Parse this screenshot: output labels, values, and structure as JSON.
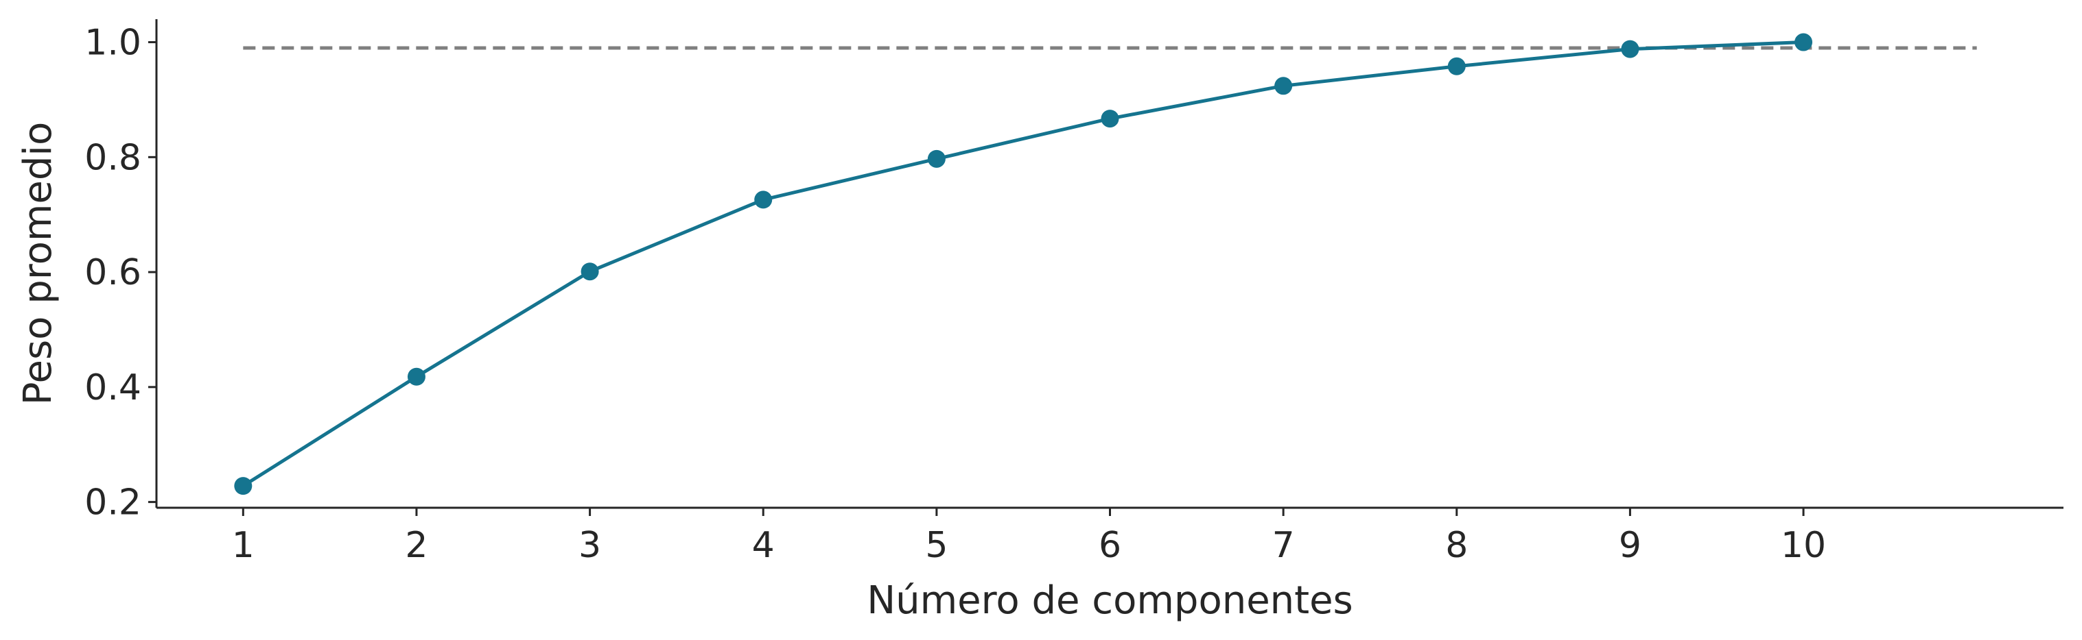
{
  "chart_data": {
    "type": "line",
    "title": "",
    "xlabel": "Número de componentes",
    "ylabel": "Peso promedio",
    "x": [
      1,
      2,
      3,
      4,
      5,
      6,
      7,
      8,
      9,
      10
    ],
    "series": [
      {
        "values": [
          0.228,
          0.418,
          0.601,
          0.726,
          0.797,
          0.867,
          0.924,
          0.958,
          0.988,
          1.0
        ],
        "color": "#15748f"
      }
    ],
    "reference_line": {
      "y": 0.99,
      "style": "dashed",
      "color": "#7f7f7f",
      "x_range": [
        1,
        11
      ]
    },
    "xlim": [
      0.5,
      11.5
    ],
    "ylim": [
      0.19,
      1.04
    ],
    "xticks": [
      1,
      2,
      3,
      4,
      5,
      6,
      7,
      8,
      9,
      10
    ],
    "yticks": [
      0.2,
      0.4,
      0.6,
      0.8,
      1.0
    ],
    "ytick_labels": [
      "0.2",
      "0.4",
      "0.6",
      "0.8",
      "1.0"
    ],
    "grid": false,
    "markers": "circle"
  }
}
